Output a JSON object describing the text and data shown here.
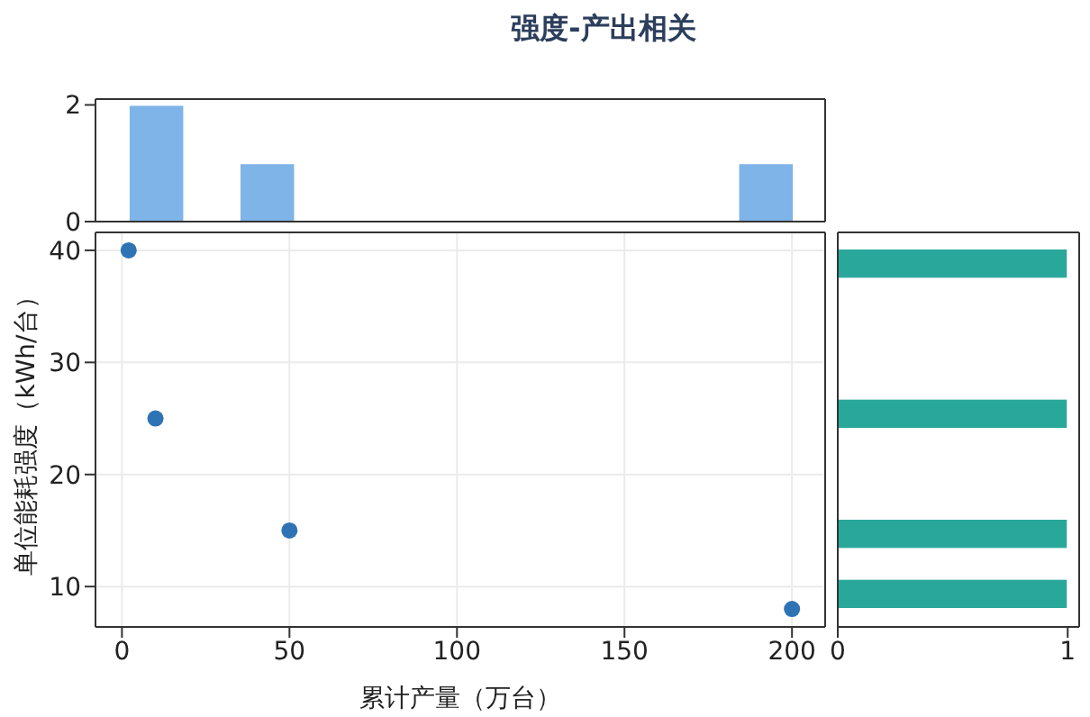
{
  "chart_data": [
    {
      "type": "histogram",
      "title": "强度-产出相关",
      "bins": [
        2,
        18.5,
        35,
        51.5,
        68,
        84.5,
        101,
        117.5,
        134,
        150.5,
        167,
        183.5,
        200
      ],
      "values": [
        2,
        0,
        1,
        0,
        0,
        0,
        0,
        0,
        0,
        0,
        0,
        1
      ],
      "color": "#7fb4e8",
      "xlim": [
        -7.9,
        209.9
      ],
      "ylim": [
        0,
        2.1
      ],
      "yticks": [
        0,
        2
      ],
      "tick_labels": "y"
    },
    {
      "type": "scatter",
      "x": [
        2,
        10,
        50,
        200
      ],
      "values": [
        40,
        25,
        15,
        8
      ],
      "color": "#2e74b5",
      "marker": "circle",
      "xlim": [
        -7.9,
        209.9
      ],
      "xticks": [
        0,
        50,
        100,
        150,
        200
      ],
      "ylim": [
        6.4,
        41.6
      ],
      "yticks": [
        10,
        20,
        30,
        40
      ],
      "xlabel": "累计产量（万台）",
      "ylabel": "单位能耗强度（kWh/台）",
      "grid": true
    },
    {
      "type": "histogram",
      "orientation": "horizontal",
      "bins": [
        8,
        10.667,
        13.333,
        16,
        18.667,
        21.333,
        24,
        26.667,
        29.333,
        32,
        34.667,
        37.333,
        40
      ],
      "values": [
        1,
        0,
        1,
        0,
        0,
        0,
        1,
        0,
        0,
        0,
        0,
        1
      ],
      "color": "#2aa79b",
      "xlim": [
        0,
        1.05
      ],
      "xticks": [
        0,
        1
      ],
      "ylim": [
        6.4,
        41.6
      ],
      "tick_labels": "x"
    }
  ]
}
